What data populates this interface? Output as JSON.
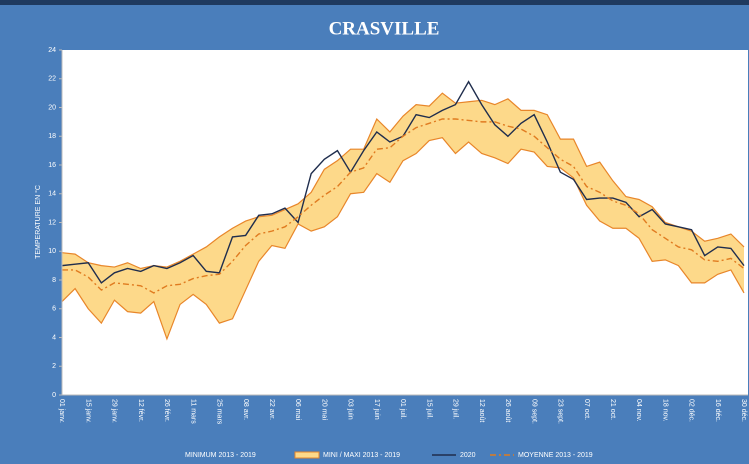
{
  "chart_data": {
    "type": "line",
    "title": "CRASVILLE",
    "y_label": "TEMPERATURE EN °C",
    "categories": [
      "01 janv.",
      null,
      "15 janv.",
      null,
      "29 janv.",
      null,
      "12 févr.",
      null,
      "26 févr.",
      null,
      "11 mars",
      null,
      "25 mars",
      null,
      "08 avr.",
      null,
      "22 avr.",
      null,
      "06 mai",
      null,
      "20 mai",
      null,
      "03 juin",
      null,
      "17 juin",
      null,
      "01 juil.",
      null,
      "15 juil.",
      null,
      "29 juil.",
      null,
      "12 août",
      null,
      "26 août",
      null,
      "09 sept.",
      null,
      "23 sept.",
      null,
      "07 oct.",
      null,
      "21 oct.",
      null,
      "04 nov.",
      null,
      "18 nov.",
      null,
      "02 déc.",
      null,
      "16 déc.",
      null,
      "30 déc."
    ],
    "series": [
      {
        "name": "MINIMUM 2013 - 2019",
        "color": "#e8862a",
        "values": [
          6.5,
          7.4,
          6.0,
          5.0,
          6.6,
          5.8,
          5.7,
          6.5,
          3.9,
          6.3,
          7.0,
          6.3,
          5.0,
          5.3,
          7.3,
          9.3,
          10.4,
          10.2,
          11.9,
          11.4,
          11.7,
          12.4,
          14.0,
          14.1,
          15.4,
          14.8,
          16.3,
          16.8,
          17.7,
          17.9,
          16.8,
          17.6,
          16.8,
          16.5,
          16.1,
          17.1,
          16.9,
          15.9,
          15.8,
          15.1,
          13.2,
          12.1,
          11.6,
          11.6,
          10.9,
          9.3,
          9.4,
          9.0,
          7.8,
          7.8,
          8.4,
          8.7,
          7.1
        ]
      },
      {
        "name": "MINI / MAXI 2013 - 2019",
        "color": "#e8862a",
        "fill": "#fdd98a",
        "values": [
          9.9,
          9.8,
          9.2,
          9.0,
          8.9,
          9.2,
          8.8,
          9.0,
          8.9,
          9.3,
          9.8,
          10.3,
          11.0,
          11.6,
          12.1,
          12.4,
          12.5,
          12.9,
          13.3,
          14.1,
          15.7,
          16.3,
          17.1,
          17.1,
          19.2,
          18.3,
          19.4,
          20.2,
          20.1,
          21.0,
          20.3,
          20.4,
          20.5,
          20.2,
          20.6,
          19.8,
          19.8,
          19.5,
          17.8,
          17.8,
          15.9,
          16.2,
          14.9,
          13.8,
          13.6,
          13.1,
          12.0,
          11.7,
          11.4,
          10.7,
          10.9,
          11.2,
          10.3
        ]
      },
      {
        "name": "2020",
        "color": "#1f2d4d",
        "values": [
          9.0,
          9.1,
          9.2,
          7.8,
          8.5,
          8.8,
          8.6,
          9.0,
          8.8,
          9.2,
          9.7,
          8.6,
          8.5,
          11.0,
          11.1,
          12.5,
          12.6,
          13.0,
          12.0,
          15.4,
          16.4,
          17.0,
          15.5,
          17.0,
          18.3,
          17.6,
          18.0,
          19.5,
          19.3,
          19.8,
          20.2,
          21.8,
          20.2,
          18.8,
          18.0,
          18.9,
          19.5,
          17.6,
          15.5,
          15.0,
          13.6,
          13.7,
          13.7,
          13.4,
          12.4,
          12.9,
          11.9,
          11.7,
          11.5,
          9.7,
          10.3,
          10.2,
          9.0
        ]
      },
      {
        "name": "MOYENNE 2013 - 2019",
        "color": "#e07b20",
        "dashed": true,
        "values": [
          8.7,
          8.7,
          8.2,
          7.3,
          7.8,
          7.7,
          7.6,
          7.1,
          7.6,
          7.7,
          8.1,
          8.3,
          8.4,
          9.3,
          10.4,
          11.2,
          11.4,
          11.7,
          12.4,
          13.2,
          13.9,
          14.5,
          15.5,
          15.8,
          17.1,
          17.2,
          18.0,
          18.6,
          18.9,
          19.2,
          19.2,
          19.1,
          19.0,
          19.0,
          18.7,
          18.5,
          18.0,
          17.2,
          16.4,
          15.9,
          14.5,
          14.1,
          13.5,
          13.2,
          12.6,
          11.5,
          10.9,
          10.3,
          10.1,
          9.4,
          9.3,
          9.5,
          8.8
        ]
      }
    ],
    "ylim": [
      0,
      24
    ],
    "yticks": [
      0,
      2,
      4,
      6,
      8,
      10,
      12,
      14,
      16,
      18,
      20,
      22,
      24
    ],
    "grid": false,
    "legend": "bottom"
  }
}
